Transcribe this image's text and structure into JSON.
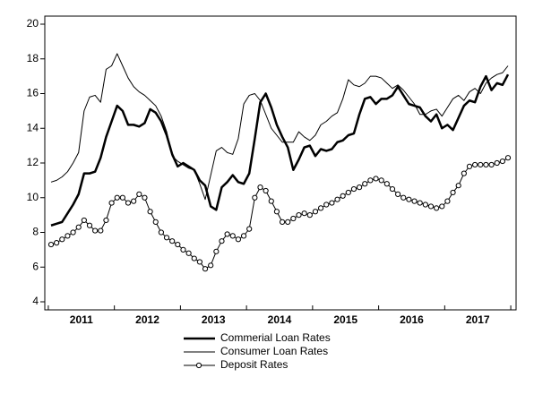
{
  "chart_data": {
    "type": "line",
    "categories": [
      null,
      null,
      null,
      null,
      null,
      null,
      "2011",
      null,
      null,
      null,
      null,
      null,
      null,
      null,
      null,
      null,
      null,
      null,
      "2012",
      null,
      null,
      null,
      null,
      null,
      null,
      null,
      null,
      null,
      null,
      null,
      "2013",
      null,
      null,
      null,
      null,
      null,
      null,
      null,
      null,
      null,
      null,
      null,
      "2014",
      null,
      null,
      null,
      null,
      null,
      null,
      null,
      null,
      null,
      null,
      null,
      "2015",
      null,
      null,
      null,
      null,
      null,
      null,
      null,
      null,
      null,
      null,
      null,
      "2016",
      null,
      null,
      null,
      null,
      null,
      null,
      null,
      null,
      null,
      null,
      null,
      "2017",
      null,
      null,
      null,
      null,
      null
    ],
    "series": [
      {
        "name": "Commerial Loan Rates",
        "color": "#000000",
        "line_width": 2.5,
        "values": [
          8.4,
          8.5,
          8.6,
          9.1,
          9.6,
          10.2,
          11.4,
          11.4,
          11.5,
          12.3,
          13.5,
          14.4,
          15.3,
          15.0,
          14.2,
          14.2,
          14.1,
          14.3,
          15.1,
          14.9,
          14.4,
          13.6,
          12.5,
          11.8,
          12.0,
          11.8,
          11.6,
          11.0,
          10.7,
          9.5,
          9.3,
          10.6,
          10.9,
          11.3,
          10.9,
          10.8,
          11.4,
          13.4,
          15.5,
          16.0,
          15.2,
          14.2,
          13.5,
          12.9,
          11.6,
          12.2,
          12.9,
          13.0,
          12.4,
          12.8,
          12.7,
          12.8,
          13.2,
          13.3,
          13.6,
          13.7,
          14.8,
          15.7,
          15.8,
          15.4,
          15.7,
          15.7,
          15.9,
          16.4,
          15.9,
          15.4,
          15.3,
          15.2,
          14.7,
          14.4,
          14.8,
          14.0,
          14.2,
          13.9,
          14.6,
          15.3,
          15.6,
          15.5,
          16.4,
          17.0,
          16.2,
          16.6,
          16.5,
          17.1
        ]
      },
      {
        "name": "Consumer Loan Rates",
        "color": "#000000",
        "line_width": 1,
        "values": [
          10.9,
          11.0,
          11.2,
          11.5,
          12.0,
          12.6,
          15.0,
          15.8,
          15.9,
          15.5,
          17.4,
          17.6,
          18.3,
          17.6,
          16.9,
          16.4,
          16.1,
          15.9,
          15.6,
          15.3,
          14.7,
          13.8,
          12.4,
          12.1,
          11.9,
          11.7,
          11.6,
          10.8,
          9.9,
          11.3,
          12.7,
          12.9,
          12.6,
          12.5,
          13.4,
          15.4,
          15.9,
          16.0,
          15.6,
          14.8,
          14.0,
          13.6,
          13.2,
          13.2,
          13.2,
          13.8,
          13.5,
          13.3,
          13.6,
          14.2,
          14.4,
          14.7,
          14.9,
          15.7,
          16.8,
          16.5,
          16.4,
          16.6,
          17.0,
          17.0,
          16.9,
          16.6,
          16.3,
          16.5,
          16.2,
          15.8,
          15.4,
          14.8,
          14.8,
          15.0,
          15.1,
          14.7,
          15.2,
          15.7,
          15.9,
          15.6,
          16.1,
          16.3,
          16.0,
          16.6,
          16.9,
          17.1,
          17.2,
          17.6
        ]
      },
      {
        "name": "Deposit Rates",
        "color": "#000000",
        "line_width": 1,
        "marker": "circle",
        "values": [
          7.3,
          7.4,
          7.6,
          7.8,
          8.0,
          8.3,
          8.7,
          8.4,
          8.1,
          8.1,
          8.7,
          9.7,
          10.0,
          10.0,
          9.7,
          9.8,
          10.2,
          10.0,
          9.2,
          8.6,
          8.0,
          7.7,
          7.5,
          7.3,
          7.0,
          6.8,
          6.5,
          6.3,
          5.9,
          6.1,
          6.9,
          7.5,
          7.9,
          7.8,
          7.6,
          7.8,
          8.2,
          10.0,
          10.6,
          10.4,
          9.8,
          9.2,
          8.6,
          8.6,
          8.8,
          9.0,
          9.1,
          9.0,
          9.2,
          9.4,
          9.6,
          9.7,
          9.9,
          10.1,
          10.3,
          10.5,
          10.6,
          10.8,
          11.0,
          11.1,
          11.0,
          10.8,
          10.5,
          10.2,
          10.0,
          9.9,
          9.8,
          9.7,
          9.6,
          9.5,
          9.4,
          9.5,
          9.8,
          10.3,
          10.7,
          11.4,
          11.8,
          11.9,
          11.9,
          11.9,
          11.9,
          12.0,
          12.1,
          12.3
        ]
      }
    ],
    "ylim": [
      4,
      20
    ],
    "yticks": [
      4,
      6,
      8,
      10,
      12,
      14,
      16,
      18,
      20
    ],
    "grid": false,
    "legend": "bottom"
  }
}
